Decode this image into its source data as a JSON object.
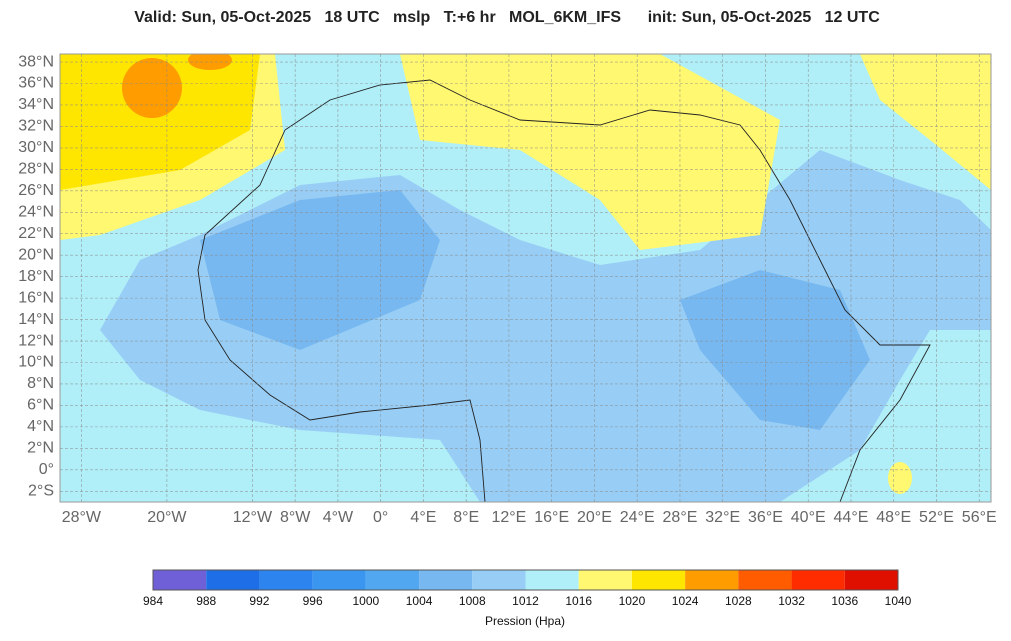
{
  "map": {
    "title": "Valid: Sun, 05-Oct-2025   18 UTC   mslp   T:+6 hr   MOL_6KM_IFS      init: Sun, 05-Oct-2025   12 UTC",
    "lon_range": [
      -30,
      57.1
    ],
    "lat_range": [
      -3,
      38.75
    ],
    "lat_ticks": [
      {
        "value": 38,
        "label": "38°N"
      },
      {
        "value": 36,
        "label": "36°N"
      },
      {
        "value": 34,
        "label": "34°N"
      },
      {
        "value": 32,
        "label": "32°N"
      },
      {
        "value": 30,
        "label": "30°N"
      },
      {
        "value": 28,
        "label": "28°N"
      },
      {
        "value": 26,
        "label": "26°N"
      },
      {
        "value": 24,
        "label": "24°N"
      },
      {
        "value": 22,
        "label": "22°N"
      },
      {
        "value": 20,
        "label": "20°N"
      },
      {
        "value": 18,
        "label": "18°N"
      },
      {
        "value": 16,
        "label": "16°N"
      },
      {
        "value": 14,
        "label": "14°N"
      },
      {
        "value": 12,
        "label": "12°N"
      },
      {
        "value": 10,
        "label": "10°N"
      },
      {
        "value": 8,
        "label": "8°N"
      },
      {
        "value": 6,
        "label": "6°N"
      },
      {
        "value": 4,
        "label": "4°N"
      },
      {
        "value": 2,
        "label": "2°N"
      },
      {
        "value": 0,
        "label": "0°"
      },
      {
        "value": -2,
        "label": "2°S"
      }
    ],
    "lon_ticks": [
      {
        "value": -28,
        "label": "28°W"
      },
      {
        "value": -20,
        "label": "20°W"
      },
      {
        "value": -12,
        "label": "12°W"
      },
      {
        "value": -8,
        "label": "8°W"
      },
      {
        "value": -4,
        "label": "4°W"
      },
      {
        "value": 0,
        "label": "0°"
      },
      {
        "value": 4,
        "label": "4°E"
      },
      {
        "value": 8,
        "label": "8°E"
      },
      {
        "value": 12,
        "label": "12°E"
      },
      {
        "value": 16,
        "label": "16°E"
      },
      {
        "value": 20,
        "label": "20°E"
      },
      {
        "value": 24,
        "label": "24°E"
      },
      {
        "value": 28,
        "label": "28°E"
      },
      {
        "value": 32,
        "label": "32°E"
      },
      {
        "value": 36,
        "label": "36°E"
      },
      {
        "value": 40,
        "label": "40°E"
      },
      {
        "value": 44,
        "label": "44°E"
      },
      {
        "value": 48,
        "label": "48°E"
      },
      {
        "value": 52,
        "label": "52°E"
      },
      {
        "value": 56,
        "label": "56°E"
      }
    ]
  },
  "colorbar": {
    "label": "Pression (Hpa)",
    "levels": [
      984,
      988,
      992,
      996,
      1000,
      1004,
      1008,
      1012,
      1016,
      1020,
      1024,
      1028,
      1032,
      1036,
      1040
    ],
    "colors": [
      "#7060d8",
      "#1e6ee8",
      "#2d84ee",
      "#3b96f0",
      "#52a8f0",
      "#78b8f0",
      "#98cef5",
      "#b0eef8",
      "#fff870",
      "#ffe600",
      "#ff9c00",
      "#ff5c00",
      "#ff2c00",
      "#e01000"
    ]
  }
}
